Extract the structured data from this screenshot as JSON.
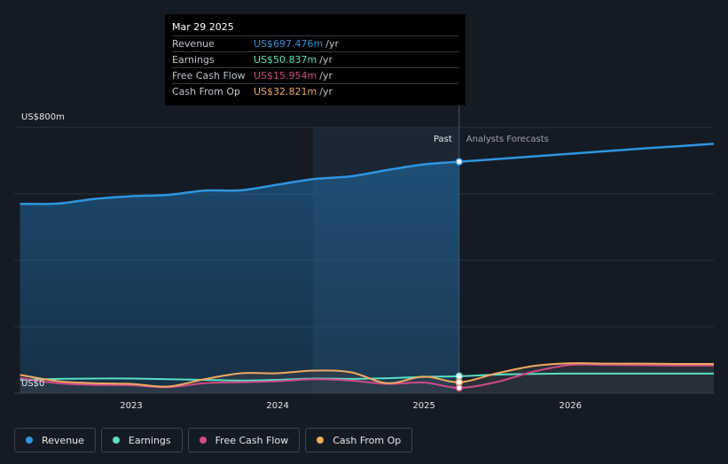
{
  "chart_data": {
    "type": "area",
    "title": "",
    "y_label_top": "US$800m",
    "y_label_bottom": "US$0",
    "ylim": [
      0,
      800
    ],
    "xlim": [
      2022.2,
      2026.98
    ],
    "x_ticks": [
      "2023",
      "2024",
      "2025",
      "2026"
    ],
    "x_tick_values": [
      2023.0,
      2024.0,
      2025.0,
      2026.0
    ],
    "divider_x": 2025.24,
    "past_start": 2024.24,
    "past_label": "Past",
    "forecast_label": "Analysts Forecasts",
    "series": [
      {
        "name": "Revenue",
        "color": "#2f95e0",
        "x": [
          2022.24,
          2022.5,
          2022.75,
          2023.0,
          2023.25,
          2023.5,
          2023.75,
          2024.0,
          2024.25,
          2024.5,
          2024.75,
          2025.0,
          2025.24,
          2025.5,
          2025.75,
          2026.0,
          2026.25,
          2026.5,
          2026.75,
          2026.98
        ],
        "values": [
          570,
          571,
          585,
          593,
          597,
          610,
          611,
          628,
          645,
          653,
          672,
          689,
          697,
          705,
          713,
          721,
          729,
          737,
          744,
          751
        ]
      },
      {
        "name": "Earnings",
        "color": "#58e0c5",
        "x": [
          2022.24,
          2022.5,
          2022.75,
          2023.0,
          2023.25,
          2023.5,
          2023.75,
          2024.0,
          2024.25,
          2024.5,
          2024.75,
          2025.0,
          2025.24,
          2025.5,
          2025.75,
          2026.0,
          2026.25,
          2026.5,
          2026.75,
          2026.98
        ],
        "values": [
          40,
          43,
          44,
          44,
          42,
          40,
          38,
          40,
          44,
          43,
          45,
          49,
          51,
          56,
          58,
          59,
          59,
          59,
          59,
          59
        ]
      },
      {
        "name": "Free Cash Flow",
        "color": "#d04a8a",
        "x": [
          2022.24,
          2022.5,
          2022.75,
          2023.0,
          2023.25,
          2023.5,
          2023.75,
          2024.0,
          2024.25,
          2024.5,
          2024.75,
          2025.0,
          2025.24,
          2025.5,
          2025.75,
          2026.0,
          2026.25,
          2026.5,
          2026.75,
          2026.98
        ],
        "values": [
          45,
          30,
          25,
          24,
          18,
          30,
          33,
          36,
          42,
          38,
          28,
          32,
          16,
          34,
          65,
          85,
          85,
          84,
          83,
          83
        ]
      },
      {
        "name": "Cash From Op",
        "color": "#f0a860",
        "x": [
          2022.24,
          2022.5,
          2022.75,
          2023.0,
          2023.25,
          2023.5,
          2023.75,
          2024.0,
          2024.25,
          2024.5,
          2024.75,
          2025.0,
          2025.24,
          2025.5,
          2025.75,
          2026.0,
          2026.25,
          2026.5,
          2026.75,
          2026.98
        ],
        "values": [
          55,
          36,
          30,
          28,
          20,
          42,
          60,
          60,
          68,
          63,
          30,
          50,
          33,
          60,
          82,
          90,
          89,
          89,
          88,
          88
        ]
      }
    ],
    "highlight_x": 2025.24
  },
  "tooltip": {
    "date": "Mar 29 2025",
    "rows": [
      {
        "label": "Revenue",
        "value": "US$697.476m",
        "unit": "/yr",
        "color": "#2f95e0"
      },
      {
        "label": "Earnings",
        "value": "US$50.837m",
        "unit": "/yr",
        "color": "#58e0c5"
      },
      {
        "label": "Free Cash Flow",
        "value": "US$15.954m",
        "unit": "/yr",
        "color": "#d04a8a"
      },
      {
        "label": "Cash From Op",
        "value": "US$32.821m",
        "unit": "/yr",
        "color": "#f0a860"
      }
    ]
  },
  "legend": [
    {
      "label": "Revenue",
      "color": "#2f95e0"
    },
    {
      "label": "Earnings",
      "color": "#58e0c5"
    },
    {
      "label": "Free Cash Flow",
      "color": "#d04a8a"
    },
    {
      "label": "Cash From Op",
      "color": "#f0a860"
    }
  ]
}
